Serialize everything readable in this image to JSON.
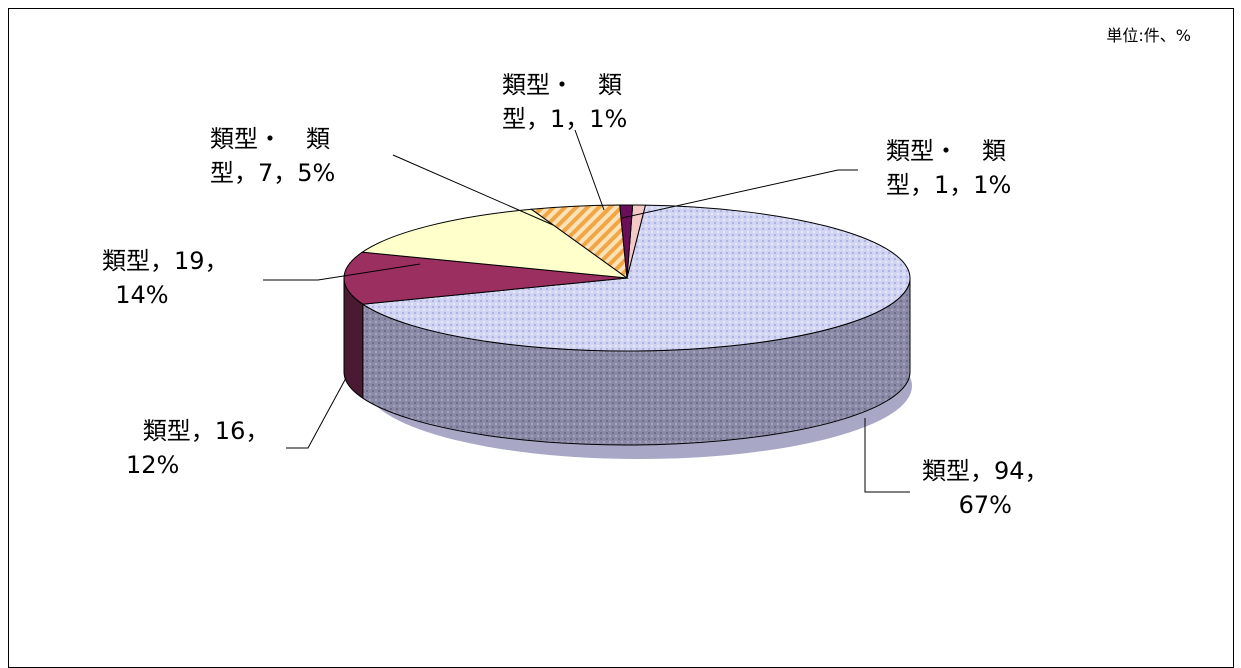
{
  "chart_data": {
    "type": "pie",
    "unit_note": "単位:件、%",
    "slices": [
      {
        "line1": "類型，94，",
        "line2": "67%",
        "value": 94,
        "percent": 67,
        "color": "#c9cdee"
      },
      {
        "line1": "類型，16，",
        "line2": "12%",
        "value": 16,
        "percent": 12,
        "color": "#9b2f60"
      },
      {
        "line1": "類型，19，",
        "line2": "14%",
        "value": 19,
        "percent": 14,
        "color": "#ffffcc"
      },
      {
        "line1": "類型・　類",
        "line2": "型，7，5%",
        "value": 7,
        "percent": 5,
        "color": "#f4b65c"
      },
      {
        "line1": "類型・　類",
        "line2": "型，1，1%",
        "value": 1,
        "percent": 1,
        "color": "#6b0f5b"
      },
      {
        "line1": "類型・　類",
        "line2": "型，1，1%",
        "value": 1,
        "percent": 1,
        "color": "#f6c9c9"
      }
    ]
  }
}
